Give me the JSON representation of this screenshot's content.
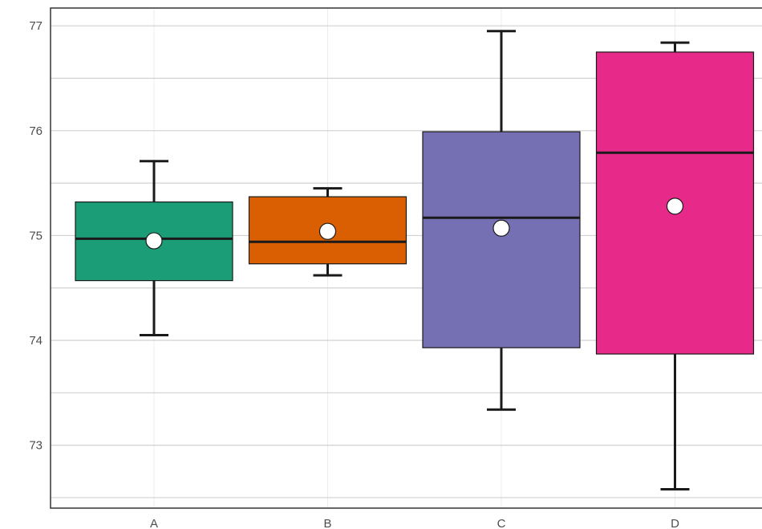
{
  "chart_data": {
    "type": "box",
    "title": "",
    "xlabel": "",
    "ylabel": "",
    "ylim": [
      72.4,
      77.17
    ],
    "y_ticks": [
      "73",
      "74",
      "75",
      "76",
      "77"
    ],
    "grid": true,
    "categories": [
      "A",
      "B",
      "C",
      "D"
    ],
    "boxes": [
      {
        "category": "A",
        "whisker_low": 74.05,
        "q1": 74.57,
        "median": 74.97,
        "q3": 75.32,
        "whisker_high": 75.71,
        "mean": 74.95,
        "color": "#1b9e77"
      },
      {
        "category": "B",
        "whisker_low": 74.62,
        "q1": 74.73,
        "median": 74.94,
        "q3": 75.37,
        "whisker_high": 75.45,
        "mean": 75.04,
        "color": "#d95f02"
      },
      {
        "category": "C",
        "whisker_low": 73.34,
        "q1": 73.93,
        "median": 75.17,
        "q3": 75.99,
        "whisker_high": 76.95,
        "mean": 75.07,
        "color": "#7570b3"
      },
      {
        "category": "D",
        "whisker_low": 72.58,
        "q1": 73.87,
        "median": 75.79,
        "q3": 76.75,
        "whisker_high": 76.84,
        "mean": 75.28,
        "color": "#e7298a"
      }
    ]
  }
}
